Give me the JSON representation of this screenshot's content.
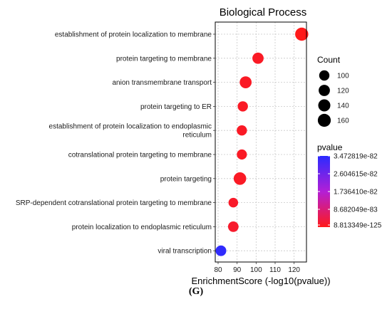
{
  "caption": "(G)",
  "colors": {
    "high_pvalue": "#2b2bff",
    "low_pvalue": "#ff1a1a",
    "grid": "#bfbfbf",
    "panel_border": "#000000"
  },
  "chart_data": {
    "type": "scatter",
    "title": "Biological Process",
    "xlabel": "EnrichmentScore (-log10(pvalue))",
    "ylabel": "",
    "xlim": [
      78.5,
      126.5
    ],
    "xticks": [
      80,
      90,
      100,
      110,
      120
    ],
    "grid": true,
    "categories": [
      "establishment of protein localization to membrane",
      "protein targeting to membrane",
      "anion transmembrane transport",
      "protein targeting to ER",
      "establishment of protein localization to endoplasmic reticulum",
      "cotranslational protein targeting to membrane",
      "protein targeting",
      "SRP-dependent cotranslational protein targeting to membrane",
      "protein localization to endoplasmic reticulum",
      "viral transcription"
    ],
    "category_lines": [
      [
        "establishment of protein localization to membrane"
      ],
      [
        "protein targeting to membrane"
      ],
      [
        "anion transmembrane transport"
      ],
      [
        "protein targeting to ER"
      ],
      [
        "establishment of protein localization to endoplasmic",
        "reticulum"
      ],
      [
        "cotranslational protein targeting to membrane"
      ],
      [
        "protein targeting"
      ],
      [
        "SRP-dependent cotranslational protein targeting to membrane"
      ],
      [
        "protein localization to endoplasmic reticulum"
      ],
      [
        "viral transcription"
      ]
    ],
    "points": [
      {
        "x": 124.0,
        "count": 165,
        "color_frac": 1.0
      },
      {
        "x": 101.0,
        "count": 120,
        "color_frac": 0.97
      },
      {
        "x": 94.5,
        "count": 135,
        "color_frac": 0.97
      },
      {
        "x": 93.0,
        "count": 100,
        "color_frac": 0.97
      },
      {
        "x": 92.5,
        "count": 100,
        "color_frac": 0.97
      },
      {
        "x": 92.5,
        "count": 97,
        "color_frac": 0.97
      },
      {
        "x": 91.5,
        "count": 150,
        "color_frac": 0.97
      },
      {
        "x": 88.0,
        "count": 88,
        "color_frac": 0.96
      },
      {
        "x": 88.0,
        "count": 105,
        "color_frac": 0.95
      },
      {
        "x": 81.5,
        "count": 108,
        "color_frac": 0.02
      }
    ],
    "size_legend": {
      "title": "Count",
      "values": [
        100,
        120,
        140,
        160
      ],
      "labels": [
        "100",
        "120",
        "140",
        "160"
      ]
    },
    "color_legend": {
      "title": "pvalue",
      "labels": [
        "3.472819e-82",
        "2.604615e-82",
        "1.736410e-82",
        "8.682049e-83",
        "8.813349e-125"
      ],
      "label_fracs": [
        0.0,
        0.25,
        0.5,
        0.75,
        0.97
      ]
    }
  }
}
